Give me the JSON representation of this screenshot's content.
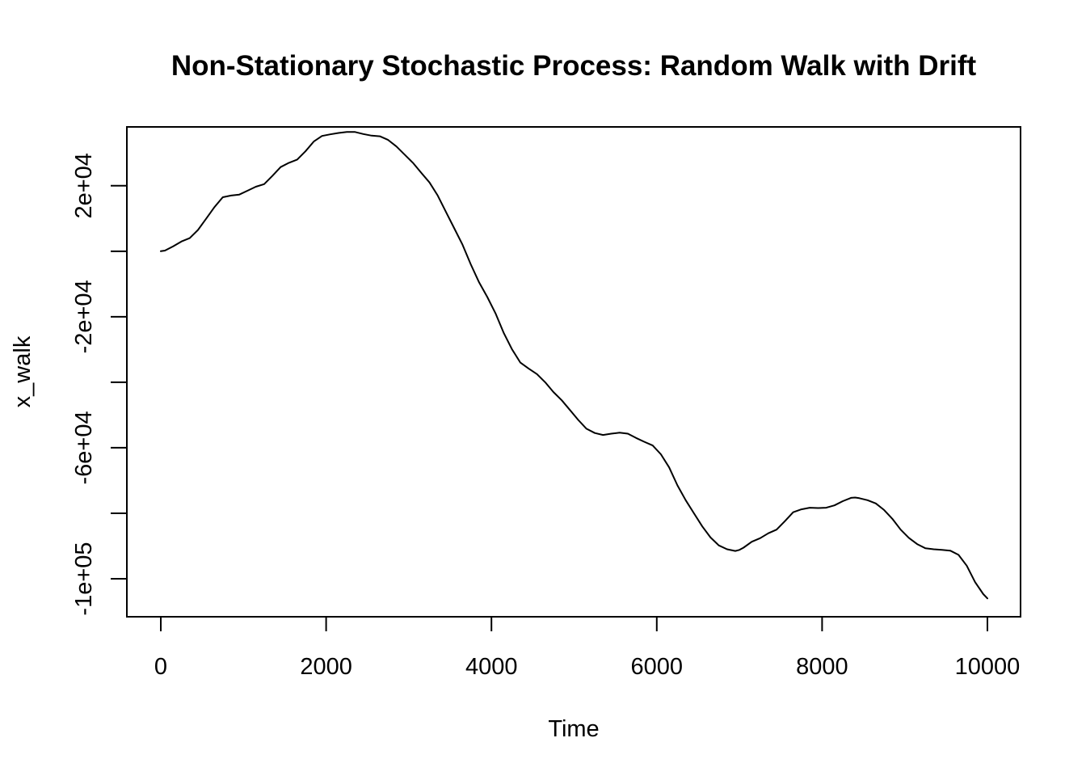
{
  "chart_data": {
    "type": "line",
    "title": "Non-Stationary Stochastic Process: Random Walk with Drift",
    "xlabel": "Time",
    "ylabel": "x_walk",
    "xlim": [
      0,
      10000
    ],
    "ylim": [
      -105000,
      35000
    ],
    "grid": false,
    "legend": "none",
    "line_color": "#000000",
    "x_ticks": [
      0,
      2000,
      4000,
      6000,
      8000,
      10000
    ],
    "x_tick_labels": [
      "0",
      "2000",
      "4000",
      "6000",
      "8000",
      "10000"
    ],
    "y_ticks": [
      -100000,
      -80000,
      -60000,
      -40000,
      -20000,
      0,
      20000,
      40000
    ],
    "y_tick_labels": [
      {
        "value": -100000,
        "label": "-1e+05"
      },
      {
        "value": -60000,
        "label": "-6e+04"
      },
      {
        "value": -20000,
        "label": "-2e+04"
      },
      {
        "value": 20000,
        "label": "2e+04"
      }
    ],
    "series": [
      {
        "x": [
          0,
          50,
          150,
          250,
          350,
          450,
          550,
          650,
          750,
          850,
          950,
          1050,
          1150,
          1250,
          1350,
          1450,
          1550,
          1650,
          1750,
          1850,
          1950,
          2050,
          2150,
          2250,
          2350,
          2450,
          2550,
          2650,
          2750,
          2850,
          2950,
          3050,
          3150,
          3250,
          3350,
          3450,
          3550,
          3650,
          3750,
          3850,
          3950,
          4050,
          4150,
          4250,
          4350,
          4450,
          4550,
          4650,
          4750,
          4850,
          4950,
          5050,
          5150,
          5250,
          5350,
          5450,
          5550,
          5650,
          5750,
          5850,
          5950,
          6050,
          6150,
          6250,
          6350,
          6450,
          6550,
          6650,
          6750,
          6850,
          6950,
          7000,
          7050,
          7150,
          7250,
          7350,
          7450,
          7550,
          7650,
          7750,
          7850,
          7950,
          8050,
          8150,
          8250,
          8350,
          8400,
          8450,
          8550,
          8650,
          8750,
          8850,
          8950,
          9050,
          9150,
          9250,
          9350,
          9450,
          9550,
          9650,
          9750,
          9850,
          9950,
          10000
        ],
        "y": [
          0,
          200,
          1500,
          3000,
          4000,
          6500,
          10000,
          13500,
          16500,
          17000,
          17300,
          18500,
          19700,
          20500,
          23000,
          25700,
          27000,
          28000,
          30500,
          33500,
          35200,
          35700,
          36100,
          36400,
          36400,
          35800,
          35300,
          35100,
          34000,
          32000,
          29500,
          27000,
          24000,
          21000,
          17000,
          12000,
          7000,
          2000,
          -4000,
          -9500,
          -14000,
          -19000,
          -25000,
          -30000,
          -34000,
          -35800,
          -37500,
          -40000,
          -43000,
          -45500,
          -48500,
          -51500,
          -54200,
          -55500,
          -56100,
          -55700,
          -55400,
          -55700,
          -57000,
          -58200,
          -59300,
          -62000,
          -66000,
          -71500,
          -76000,
          -80000,
          -84000,
          -87400,
          -89800,
          -91000,
          -91500,
          -91200,
          -90500,
          -88700,
          -87600,
          -86100,
          -85000,
          -82400,
          -79700,
          -78800,
          -78300,
          -78400,
          -78300,
          -77600,
          -76300,
          -75300,
          -75200,
          -75400,
          -76000,
          -77000,
          -79000,
          -81700,
          -85000,
          -87500,
          -89400,
          -90700,
          -91000,
          -91200,
          -91400,
          -92700,
          -96000,
          -101000,
          -104700,
          -106000
        ]
      }
    ]
  }
}
